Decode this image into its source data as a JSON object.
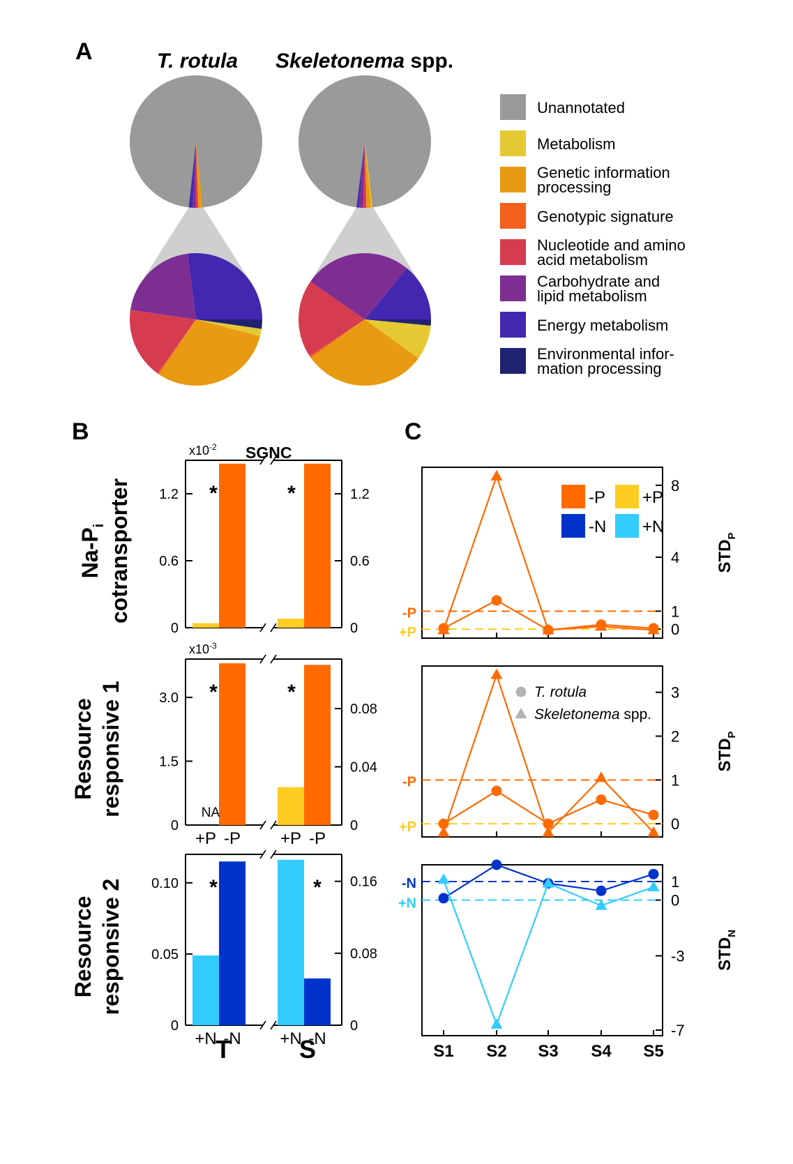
{
  "colors": {
    "unannotated": "#9a9a9a",
    "metabolism": "#e6c832",
    "genetic": "#e89a12",
    "genotypic": "#f2611c",
    "nucleotide": "#d63c4f",
    "carbohydrate": "#7e2e92",
    "energy": "#4227b0",
    "environmental": "#1f2270",
    "minusP": "#ff6a00",
    "plusP": "#ffcc22",
    "minusN": "#0033cc",
    "plusN": "#33ccff"
  },
  "panelA": {
    "letter": "A",
    "title_left": "T. rotula",
    "title_right_italic": "Skeletonema",
    "title_right_plain": " spp.",
    "legend": [
      {
        "key": "unannotated",
        "line1": "Unannotated",
        "line2": ""
      },
      {
        "key": "metabolism",
        "line1": "Metabolism",
        "line2": ""
      },
      {
        "key": "genetic",
        "line1": "Genetic information",
        "line2": "processing"
      },
      {
        "key": "genotypic",
        "line1": "Genotypic signature",
        "line2": ""
      },
      {
        "key": "nucleotide",
        "line1": "Nucleotide and amino",
        "line2": "acid metabolism"
      },
      {
        "key": "carbohydrate",
        "line1": "Carbohydrate and",
        "line2": "lipid metabolism"
      },
      {
        "key": "energy",
        "line1": "Energy metabolism",
        "line2": ""
      },
      {
        "key": "environmental",
        "line1": "Environmental infor-",
        "line2": "mation processing"
      }
    ],
    "chart_data": [
      {
        "type": "pie",
        "name": "T. rotula",
        "annotated_percent": 3.5,
        "slices": [
          {
            "key": "environmental",
            "value": 2.3
          },
          {
            "key": "metabolism",
            "value": 1.8
          },
          {
            "key": "genetic",
            "value": 30.4
          },
          {
            "key": "genotypic",
            "value": 0.3
          },
          {
            "key": "nucleotide",
            "value": 17.5
          },
          {
            "key": "carbohydrate",
            "value": 20.7
          },
          {
            "key": "energy",
            "value": 27.0
          }
        ]
      },
      {
        "type": "pie",
        "name": "Skeletonema spp.",
        "annotated_percent": 4.0,
        "slices": [
          {
            "key": "environmental",
            "value": 1.5
          },
          {
            "key": "metabolism",
            "value": 8.5
          },
          {
            "key": "genetic",
            "value": 30.2
          },
          {
            "key": "genotypic",
            "value": 0.5
          },
          {
            "key": "nucleotide",
            "value": 19.0
          },
          {
            "key": "carbohydrate",
            "value": 26.3
          },
          {
            "key": "energy",
            "value": 14.0
          }
        ]
      }
    ]
  },
  "panelB": {
    "letter": "B",
    "sgnc": "SGNC",
    "rows": [
      {
        "label1": "Na-P",
        "label_sub": "i",
        "label2": "cotransporter",
        "multiplier": "x10",
        "multiplier_exp": "-2",
        "leftTicks": [
          "0",
          "0.6",
          "1.2"
        ],
        "rightTicks": [
          "0",
          "0.6",
          "1.2"
        ],
        "xlabels": []
      },
      {
        "label1": "Resource",
        "label_sub": "",
        "label2": "responsive 1",
        "multiplier": "x10",
        "multiplier_exp": "-3",
        "leftTicks": [
          "0",
          "1.5",
          "3.0"
        ],
        "rightTicks": [
          "0",
          "0.04",
          "0.08"
        ],
        "na": "NA",
        "xlabels": [
          "+P",
          "-P",
          "+P",
          "-P"
        ]
      },
      {
        "label1": "Resource",
        "label_sub": "",
        "label2": "responsive 2",
        "multiplier": "",
        "multiplier_exp": "",
        "leftTicks": [
          "0",
          "0.05",
          "0.10"
        ],
        "rightTicks": [
          "0",
          "0.08",
          "0.16"
        ],
        "xlabels": [
          "+N",
          "-N",
          "+N",
          "-N"
        ]
      }
    ],
    "groups": [
      "T",
      "S"
    ],
    "star": "*",
    "chart_data": [
      {
        "type": "bar",
        "title": "Na-Pi cotransporter",
        "groups": [
          "T",
          "S"
        ],
        "categories": [
          "+P",
          "-P"
        ],
        "series": [
          {
            "name": "T",
            "values": [
              0.04,
              1.47
            ],
            "ylim": [
              0,
              1.5
            ],
            "scale": "x10^-2"
          },
          {
            "name": "S",
            "values": [
              0.08,
              1.47
            ],
            "ylim": [
              0,
              1.5
            ],
            "scale": "x10^-2"
          }
        ],
        "significant": [
          true,
          true
        ]
      },
      {
        "type": "bar",
        "title": "Resource responsive 1",
        "groups": [
          "T",
          "S"
        ],
        "categories": [
          "+P",
          "-P"
        ],
        "series": [
          {
            "name": "T",
            "values": [
              null,
              3.8
            ],
            "ylim": [
              0,
              3.9
            ],
            "scale": "x10^-3"
          },
          {
            "name": "S",
            "values": [
              0.026,
              0.11
            ],
            "ylim": [
              0,
              0.114
            ]
          }
        ],
        "significant": [
          true,
          true
        ]
      },
      {
        "type": "bar",
        "title": "Resource responsive 2",
        "groups": [
          "T",
          "S"
        ],
        "categories": [
          "+N",
          "-N"
        ],
        "series": [
          {
            "name": "T",
            "values": [
              0.049,
              0.115
            ],
            "ylim": [
              0,
              0.12
            ]
          },
          {
            "name": "S",
            "values": [
              0.184,
              0.052
            ],
            "ylim": [
              0,
              0.19
            ]
          }
        ],
        "significant": [
          true,
          true
        ]
      }
    ]
  },
  "panelC": {
    "letter": "C",
    "xcats": [
      "S1",
      "S2",
      "S3",
      "S4",
      "S5"
    ],
    "legendColor": [
      {
        "label": "-P",
        "key": "minusP"
      },
      {
        "label": "+P",
        "key": "plusP"
      },
      {
        "label": "-N",
        "key": "minusN"
      },
      {
        "label": "+N",
        "key": "plusN"
      }
    ],
    "legendShape": [
      {
        "shape": "circle",
        "label_italic": "T. rotula",
        "label_plain": ""
      },
      {
        "shape": "triangle",
        "label_italic": "Skeletonema",
        "label_plain": " spp."
      }
    ],
    "refLabels": {
      "minusP": "-P",
      "plusP": "+P",
      "minusN": "-N",
      "plusN": "+N"
    },
    "ylabels": [
      {
        "main": "STD",
        "sub": "P"
      },
      {
        "main": "STD",
        "sub": "P"
      },
      {
        "main": "STD",
        "sub": "N"
      }
    ],
    "tickLabels": [
      [
        "0",
        "1",
        "4",
        "8"
      ],
      [
        "0",
        "1",
        "2",
        "3"
      ],
      [
        "-7",
        "-3",
        "0",
        "1"
      ]
    ],
    "chart_data": [
      {
        "type": "line",
        "x": [
          "S1",
          "S2",
          "S3",
          "S4",
          "S5"
        ],
        "ylim": [
          -0.5,
          9.0
        ],
        "yticks": [
          0,
          1,
          4,
          8
        ],
        "ref_lines": [
          {
            "name": "-P",
            "y": 1
          },
          {
            "name": "+P",
            "y": 0
          }
        ],
        "series": [
          {
            "name": "T. rotula",
            "marker": "circle",
            "values": [
              0.05,
              1.6,
              -0.05,
              0.25,
              0.05
            ]
          },
          {
            "name": "Skeletonema spp.",
            "marker": "triangle",
            "values": [
              -0.05,
              8.5,
              -0.05,
              0.15,
              -0.05
            ]
          }
        ]
      },
      {
        "type": "line",
        "x": [
          "S1",
          "S2",
          "S3",
          "S4",
          "S5"
        ],
        "ylim": [
          -0.3,
          3.6
        ],
        "yticks": [
          0,
          1,
          2,
          3
        ],
        "ref_lines": [
          {
            "name": "-P",
            "y": 1
          },
          {
            "name": "+P",
            "y": 0
          }
        ],
        "series": [
          {
            "name": "T. rotula",
            "marker": "circle",
            "values": [
              0.0,
              0.75,
              0.0,
              0.55,
              0.2
            ]
          },
          {
            "name": "Skeletonema spp.",
            "marker": "triangle",
            "values": [
              -0.2,
              3.4,
              -0.2,
              1.05,
              -0.2
            ]
          }
        ]
      },
      {
        "type": "line",
        "x": [
          "S1",
          "S2",
          "S3",
          "S4",
          "S5"
        ],
        "ylim": [
          -7.3,
          1.9
        ],
        "yticks": [
          -7,
          -3,
          0,
          1
        ],
        "ref_lines": [
          {
            "name": "-N",
            "y": 1
          },
          {
            "name": "+N",
            "y": 0
          }
        ],
        "series": [
          {
            "name": "T. rotula",
            "marker": "circle",
            "values": [
              0.1,
              1.9,
              0.9,
              0.5,
              1.4
            ]
          },
          {
            "name": "Skeletonema spp.",
            "marker": "triangle",
            "values": [
              1.1,
              -6.7,
              0.9,
              -0.3,
              0.7
            ]
          }
        ]
      }
    ]
  }
}
